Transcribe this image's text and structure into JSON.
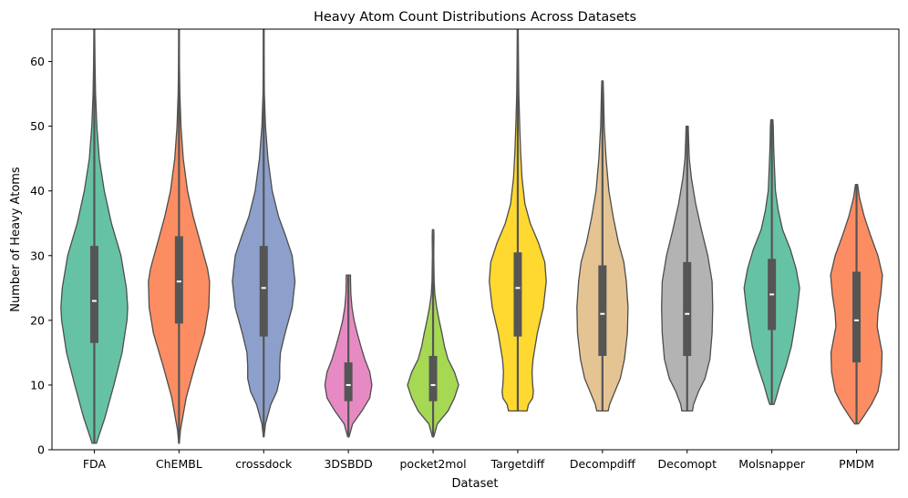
{
  "chart_data": {
    "type": "violin",
    "title": "Heavy Atom Count Distributions Across Datasets",
    "xlabel": "Dataset",
    "ylabel": "Number of Heavy Atoms",
    "ylim": [
      0,
      65
    ],
    "yticks": [
      0,
      10,
      20,
      30,
      40,
      50,
      60
    ],
    "grid": false,
    "categories": [
      "FDA",
      "ChEMBL",
      "crossdock",
      "3DSBDD",
      "pocket2mol",
      "Targetdiff",
      "Decompdiff",
      "Decomopt",
      "Molsnapper",
      "PMDM"
    ],
    "colors": [
      "#66c2a5",
      "#fc8d62",
      "#8da0cb",
      "#e78ac3",
      "#a6d854",
      "#ffd92f",
      "#e5c494",
      "#b3b3b3",
      "#66c2a5",
      "#fc8d62"
    ],
    "series": [
      {
        "category": "FDA",
        "min": 1,
        "q1": 16.5,
        "median": 23,
        "q3": 31.5,
        "max": 65,
        "density": [
          [
            1,
            0.06
          ],
          [
            2,
            0.12
          ],
          [
            5,
            0.3
          ],
          [
            10,
            0.55
          ],
          [
            15,
            0.78
          ],
          [
            20,
            0.92
          ],
          [
            22,
            0.94
          ],
          [
            25,
            0.9
          ],
          [
            30,
            0.75
          ],
          [
            35,
            0.48
          ],
          [
            40,
            0.28
          ],
          [
            45,
            0.14
          ],
          [
            50,
            0.07
          ],
          [
            55,
            0.035
          ],
          [
            60,
            0.02
          ],
          [
            65,
            0.01
          ]
        ]
      },
      {
        "category": "ChEMBL",
        "min": 1,
        "q1": 19.5,
        "median": 26,
        "q3": 33,
        "max": 65,
        "density": [
          [
            1,
            0.01
          ],
          [
            3,
            0.04
          ],
          [
            8,
            0.2
          ],
          [
            13,
            0.45
          ],
          [
            18,
            0.72
          ],
          [
            22,
            0.84
          ],
          [
            26,
            0.86
          ],
          [
            28,
            0.8
          ],
          [
            32,
            0.6
          ],
          [
            36,
            0.4
          ],
          [
            40,
            0.24
          ],
          [
            45,
            0.12
          ],
          [
            50,
            0.055
          ],
          [
            55,
            0.025
          ],
          [
            60,
            0.012
          ],
          [
            65,
            0.005
          ]
        ]
      },
      {
        "category": "crossdock",
        "min": 2,
        "q1": 17.5,
        "median": 25,
        "q3": 31.5,
        "max": 65,
        "density": [
          [
            2,
            0.01
          ],
          [
            4,
            0.05
          ],
          [
            7,
            0.2
          ],
          [
            9,
            0.37
          ],
          [
            11,
            0.45
          ],
          [
            13,
            0.45
          ],
          [
            15,
            0.47
          ],
          [
            18,
            0.6
          ],
          [
            22,
            0.8
          ],
          [
            26,
            0.88
          ],
          [
            30,
            0.8
          ],
          [
            33,
            0.62
          ],
          [
            36,
            0.42
          ],
          [
            40,
            0.24
          ],
          [
            45,
            0.12
          ],
          [
            50,
            0.05
          ],
          [
            55,
            0.02
          ],
          [
            60,
            0.012
          ],
          [
            65,
            0.006
          ]
        ]
      },
      {
        "category": "3DSBDD",
        "min": 2,
        "q1": 7.5,
        "median": 10,
        "q3": 13.5,
        "max": 27,
        "density": [
          [
            2,
            0.02
          ],
          [
            4,
            0.12
          ],
          [
            6,
            0.38
          ],
          [
            8,
            0.6
          ],
          [
            10,
            0.66
          ],
          [
            12,
            0.6
          ],
          [
            14,
            0.46
          ],
          [
            16,
            0.35
          ],
          [
            18,
            0.25
          ],
          [
            20,
            0.16
          ],
          [
            22,
            0.1
          ],
          [
            24,
            0.07
          ],
          [
            26,
            0.06
          ],
          [
            27,
            0.06
          ]
        ]
      },
      {
        "category": "pocket2mol",
        "min": 2,
        "q1": 7.5,
        "median": 10,
        "q3": 14.5,
        "max": 34,
        "density": [
          [
            2,
            0.02
          ],
          [
            4,
            0.12
          ],
          [
            6,
            0.42
          ],
          [
            8,
            0.6
          ],
          [
            10,
            0.72
          ],
          [
            12,
            0.6
          ],
          [
            14,
            0.42
          ],
          [
            16,
            0.32
          ],
          [
            18,
            0.25
          ],
          [
            20,
            0.17
          ],
          [
            22,
            0.1
          ],
          [
            24,
            0.05
          ],
          [
            26,
            0.03
          ],
          [
            30,
            0.02
          ],
          [
            33,
            0.025
          ],
          [
            34,
            0.02
          ]
        ]
      },
      {
        "category": "Targetdiff",
        "min": 6,
        "q1": 17.5,
        "median": 25,
        "q3": 30.5,
        "max": 65,
        "density": [
          [
            6,
            0.26
          ],
          [
            7,
            0.3
          ],
          [
            8,
            0.42
          ],
          [
            9,
            0.44
          ],
          [
            10,
            0.42
          ],
          [
            12,
            0.4
          ],
          [
            14,
            0.43
          ],
          [
            18,
            0.55
          ],
          [
            22,
            0.72
          ],
          [
            26,
            0.8
          ],
          [
            29,
            0.76
          ],
          [
            32,
            0.58
          ],
          [
            35,
            0.35
          ],
          [
            38,
            0.2
          ],
          [
            42,
            0.12
          ],
          [
            46,
            0.08
          ],
          [
            50,
            0.055
          ],
          [
            55,
            0.03
          ],
          [
            60,
            0.02
          ],
          [
            65,
            0.012
          ]
        ]
      },
      {
        "category": "Decompdiff",
        "min": 6,
        "q1": 14.5,
        "median": 21,
        "q3": 28.5,
        "max": 57,
        "density": [
          [
            6,
            0.16
          ],
          [
            7,
            0.2
          ],
          [
            9,
            0.35
          ],
          [
            11,
            0.5
          ],
          [
            14,
            0.62
          ],
          [
            18,
            0.7
          ],
          [
            22,
            0.72
          ],
          [
            26,
            0.67
          ],
          [
            29,
            0.6
          ],
          [
            32,
            0.45
          ],
          [
            36,
            0.3
          ],
          [
            40,
            0.18
          ],
          [
            45,
            0.1
          ],
          [
            50,
            0.05
          ],
          [
            55,
            0.03
          ],
          [
            57,
            0.02
          ]
        ]
      },
      {
        "category": "Decomopt",
        "min": 6,
        "q1": 14.5,
        "median": 21,
        "q3": 29,
        "max": 50,
        "density": [
          [
            6,
            0.15
          ],
          [
            7,
            0.18
          ],
          [
            9,
            0.32
          ],
          [
            11,
            0.5
          ],
          [
            14,
            0.64
          ],
          [
            18,
            0.7
          ],
          [
            22,
            0.72
          ],
          [
            26,
            0.7
          ],
          [
            30,
            0.58
          ],
          [
            34,
            0.4
          ],
          [
            38,
            0.24
          ],
          [
            42,
            0.12
          ],
          [
            45,
            0.06
          ],
          [
            48,
            0.04
          ],
          [
            50,
            0.03
          ]
        ]
      },
      {
        "category": "Molsnapper",
        "min": 7,
        "q1": 18.5,
        "median": 24,
        "q3": 29.5,
        "max": 51,
        "density": [
          [
            7,
            0.06
          ],
          [
            8,
            0.12
          ],
          [
            10,
            0.22
          ],
          [
            13,
            0.4
          ],
          [
            16,
            0.55
          ],
          [
            19,
            0.64
          ],
          [
            22,
            0.72
          ],
          [
            25,
            0.78
          ],
          [
            28,
            0.68
          ],
          [
            31,
            0.52
          ],
          [
            34,
            0.3
          ],
          [
            37,
            0.18
          ],
          [
            40,
            0.1
          ],
          [
            44,
            0.07
          ],
          [
            47,
            0.05
          ],
          [
            50,
            0.04
          ],
          [
            51,
            0.03
          ]
        ]
      },
      {
        "category": "PMDM",
        "min": 4,
        "q1": 13.5,
        "median": 20,
        "q3": 27.5,
        "max": 41,
        "density": [
          [
            4,
            0.05
          ],
          [
            5,
            0.18
          ],
          [
            7,
            0.42
          ],
          [
            9,
            0.6
          ],
          [
            12,
            0.7
          ],
          [
            15,
            0.72
          ],
          [
            17,
            0.65
          ],
          [
            19,
            0.58
          ],
          [
            21,
            0.6
          ],
          [
            24,
            0.68
          ],
          [
            27,
            0.73
          ],
          [
            30,
            0.6
          ],
          [
            33,
            0.4
          ],
          [
            36,
            0.22
          ],
          [
            39,
            0.08
          ],
          [
            41,
            0.03
          ]
        ]
      }
    ]
  }
}
